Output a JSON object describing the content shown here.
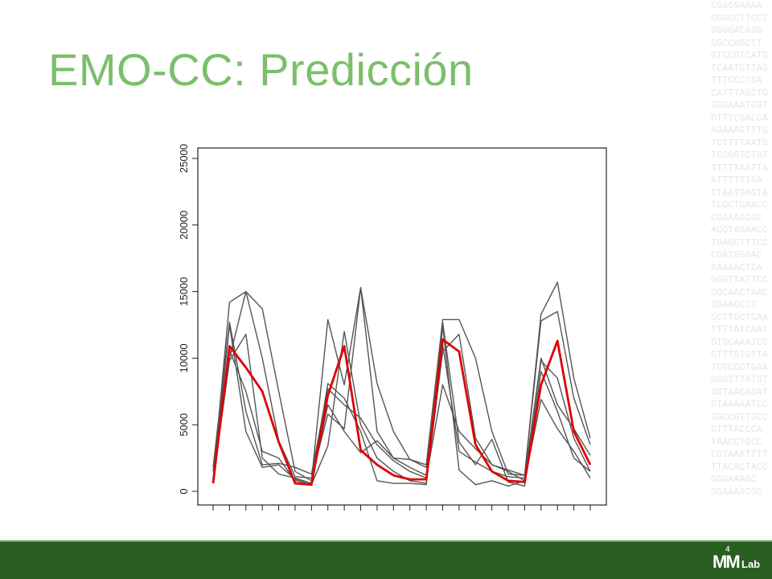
{
  "slide": {
    "title": "EMO-CC: Predicción",
    "background_sequence": [
      "CGGGGAAAA",
      "GGGGCTTGCT",
      "GGGGACAGG",
      "GGCCAGCTT",
      "GTCCGTCATG",
      "TCAATGTTAG",
      "TTTCCCTGA",
      "CATTTAGCTG",
      "GGGAAATCGT",
      "GTTTCGACCA",
      "AGAAAGTTTG",
      "TCTTTTAATG",
      "TCGGGTCTGT",
      "GTTTTAATTA",
      "ATTTTTTGA",
      "CTAATGAGTA",
      "TCGCTGAACC",
      "CGAAAGCGC",
      "ACGTAGAACC",
      "TGAGCTTTCC",
      "CGATGGGAC",
      "AAAAACTCA",
      "GGGTTATTCC",
      "GGCAACTAAC",
      "GGAAGCCT",
      "GCTTGCTGAA",
      "TTTTATCAAT",
      "GTGCAAATCG",
      "GTTTGTGTTA",
      "TCGCCCTGAA",
      "GGGTTTATGT",
      "GGTAACAGAT",
      "GTAAAAATCC",
      "GGCCGTTGCC",
      "GTTTACCCA",
      "TAACCTGCC",
      "CGTAAATTTT",
      "TTACACTACC",
      "GGGAAAGC",
      "GGAAAGCGC"
    ],
    "logo": {
      "mark": "MM",
      "superscript": "4",
      "text": "Lab"
    }
  },
  "chart_data": {
    "type": "line",
    "x": [
      1,
      2,
      3,
      4,
      5,
      6,
      7,
      8,
      9,
      10,
      11,
      12,
      13,
      14,
      15,
      16,
      17,
      18,
      19,
      20,
      21,
      22,
      23,
      24
    ],
    "xlim": [
      1,
      24
    ],
    "ylim": [
      0,
      25000
    ],
    "yticks": [
      0,
      5000,
      10000,
      15000,
      20000,
      25000
    ],
    "ytick_labels": [
      "0",
      "5000",
      "10000",
      "15000",
      "20000",
      "25000"
    ],
    "xtick_labels": [],
    "title": "",
    "xlabel": "",
    "ylabel": "",
    "grid": false,
    "series": [
      {
        "color": "#555555",
        "values": [
          900,
          14200,
          15000,
          13700,
          7500,
          1500,
          800,
          12900,
          8000,
          15300,
          8100,
          4500,
          2400,
          2000,
          12900,
          12900,
          10000,
          4500,
          1300,
          1200,
          13300,
          15700,
          8500,
          4000
        ]
      },
      {
        "color": "#555555",
        "values": [
          1800,
          12700,
          6000,
          2000,
          2100,
          1800,
          1300,
          7700,
          6500,
          5500,
          3500,
          2300,
          1500,
          1000,
          8000,
          4500,
          3200,
          2000,
          1600,
          1200,
          12800,
          13500,
          7000,
          3500
        ]
      },
      {
        "color": "#555555",
        "values": [
          1500,
          10000,
          15000,
          10000,
          3800,
          1100,
          1000,
          5800,
          4700,
          15300,
          4500,
          2500,
          1800,
          1200,
          11000,
          3000,
          2200,
          1500,
          1100,
          1000,
          10000,
          6500,
          4700,
          2700
        ]
      },
      {
        "color": "#555555",
        "values": [
          700,
          12500,
          4500,
          1800,
          2000,
          900,
          600,
          8100,
          7000,
          4500,
          800,
          600,
          600,
          500,
          12400,
          1600,
          500,
          800,
          400,
          800,
          6900,
          4700,
          3000,
          1000
        ]
      },
      {
        "color": "#555555",
        "values": [
          600,
          10600,
          7500,
          3000,
          2500,
          800,
          500,
          3400,
          12000,
          5000,
          2500,
          1500,
          800,
          600,
          10500,
          11800,
          4000,
          2000,
          1500,
          800,
          9800,
          8500,
          4000,
          1500
        ]
      },
      {
        "color": "#555555",
        "values": [
          800,
          9800,
          11800,
          2500,
          1300,
          1000,
          600,
          6500,
          4500,
          2900,
          3800,
          2500,
          2400,
          1800,
          12700,
          3700,
          2000,
          3900,
          700,
          400,
          9000,
          6000,
          2500,
          1500
        ]
      },
      {
        "color": "#e00000",
        "values": [
          600,
          10900,
          9300,
          7500,
          3700,
          600,
          500,
          7200,
          10900,
          3100,
          2000,
          1200,
          900,
          900,
          11400,
          10500,
          3500,
          1500,
          800,
          700,
          8000,
          11300,
          4500,
          2000
        ]
      }
    ]
  }
}
